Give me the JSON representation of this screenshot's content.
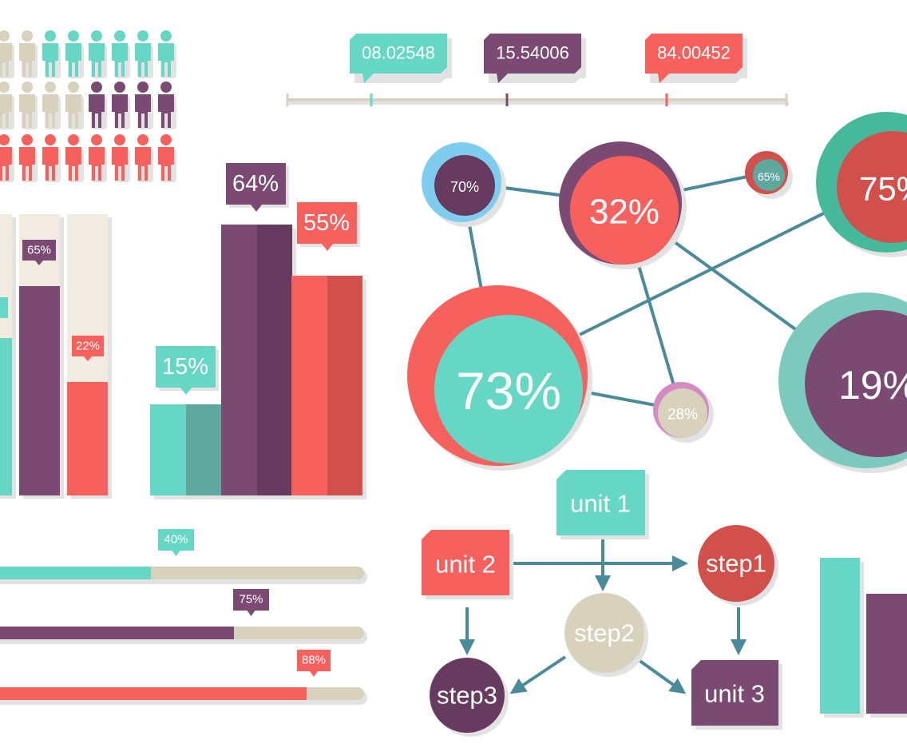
{
  "timeline": {
    "markers": [
      "08.02548",
      "15.54006",
      "84.00452"
    ]
  },
  "progress_columns": {
    "labels": [
      "%",
      "65%",
      "22%"
    ]
  },
  "bar_chart": {
    "labels": [
      "15%",
      "64%",
      "55%"
    ]
  },
  "network": {
    "nodes": [
      "70%",
      "32%",
      "65%",
      "75%",
      "73%",
      "28%",
      "19%"
    ]
  },
  "flowchart": {
    "nodes": [
      "unit 1",
      "unit 2",
      "step1",
      "step2",
      "step3",
      "unit 3"
    ]
  },
  "progress_bars": {
    "labels": [
      "40%",
      "75%",
      "88%"
    ]
  }
}
